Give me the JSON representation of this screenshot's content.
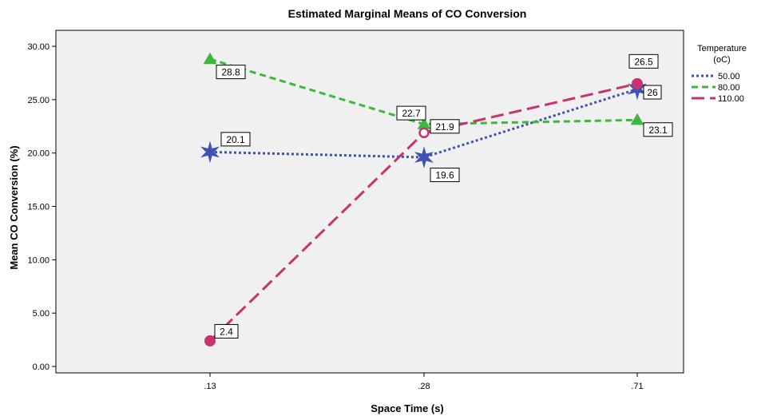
{
  "chart_data": {
    "type": "line",
    "title": "Estimated Marginal Means of CO Conversion",
    "xlabel": "Space Time (s)",
    "ylabel": "Mean CO Conversion (%)",
    "categories": [
      ".13",
      ".28",
      ".71"
    ],
    "ylim": [
      -0.6,
      31.5
    ],
    "yticks": [
      "0.00",
      "5.00",
      "10.00",
      "15.00",
      "20.00",
      "25.00",
      "30.00"
    ],
    "ytick_values": [
      0,
      5,
      10,
      15,
      20,
      25,
      30
    ],
    "grid": false,
    "background": "#f0f0f0",
    "legend": {
      "title_line1": "Temperature",
      "title_line2": "(oC)",
      "placement": "top-right"
    },
    "series": [
      {
        "name": "50.00",
        "values": [
          20.1,
          19.6,
          26
        ],
        "labels": [
          "20.1",
          "19.6",
          "26"
        ],
        "color": "#3f51b5",
        "dash": "dotted",
        "marker": "star"
      },
      {
        "name": "80.00",
        "values": [
          28.8,
          22.7,
          23.1
        ],
        "labels": [
          "28.8",
          "22.7",
          "23.1"
        ],
        "color": "#3cb83c",
        "dash": "dashed",
        "marker": "triangle"
      },
      {
        "name": "110.00",
        "values": [
          2.4,
          21.9,
          26.5
        ],
        "labels": [
          "2.4",
          "21.9",
          "26.5"
        ],
        "color": "#c7336f",
        "dash": "longdash",
        "marker": "circle"
      }
    ]
  }
}
